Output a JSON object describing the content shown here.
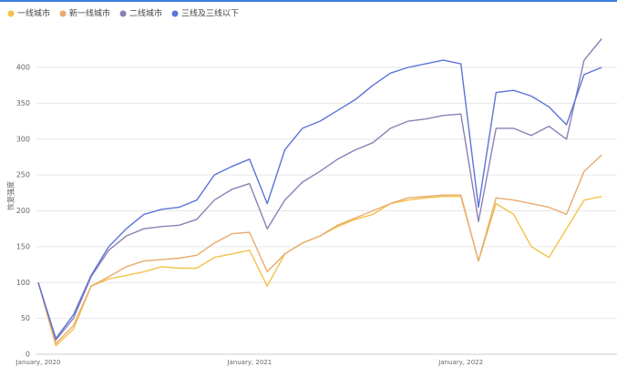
{
  "chart_data": {
    "type": "line",
    "ylabel": "恢复强度",
    "categories": [
      "January, 2020",
      null,
      null,
      null,
      null,
      null,
      null,
      null,
      null,
      null,
      null,
      null,
      "January, 2021",
      null,
      null,
      null,
      null,
      null,
      null,
      null,
      null,
      null,
      null,
      null,
      "January, 2022",
      null,
      null,
      null,
      null,
      null,
      null,
      null,
      null
    ],
    "series": [
      {
        "name": "一线城市",
        "color": "#f3c249",
        "values": [
          100,
          12,
          35,
          95,
          105,
          110,
          115,
          122,
          120,
          120,
          135,
          140,
          145,
          95,
          140,
          155,
          165,
          178,
          188,
          195,
          210,
          215,
          218,
          220,
          220,
          130,
          210,
          195,
          150,
          135,
          175,
          215,
          220
        ]
      },
      {
        "name": "新一线城市",
        "color": "#e9aa6e",
        "values": [
          100,
          15,
          40,
          95,
          108,
          122,
          130,
          132,
          134,
          138,
          155,
          168,
          170,
          115,
          140,
          155,
          165,
          180,
          190,
          200,
          210,
          218,
          220,
          222,
          222,
          130,
          218,
          215,
          210,
          205,
          195,
          255,
          278
        ]
      },
      {
        "name": "二线城市",
        "color": "#8b80b6",
        "values": [
          100,
          20,
          50,
          108,
          145,
          165,
          175,
          178,
          180,
          188,
          215,
          230,
          238,
          175,
          215,
          240,
          255,
          272,
          285,
          295,
          315,
          325,
          328,
          333,
          335,
          185,
          315,
          315,
          305,
          318,
          300,
          410,
          440
        ]
      },
      {
        "name": "三线及三线以下",
        "color": "#5c74d8",
        "values": [
          100,
          22,
          55,
          110,
          150,
          175,
          195,
          202,
          205,
          215,
          250,
          262,
          272,
          210,
          285,
          315,
          325,
          340,
          355,
          375,
          392,
          400,
          405,
          410,
          405,
          205,
          365,
          368,
          360,
          345,
          320,
          390,
          400
        ]
      }
    ],
    "ylim": [
      0,
      450
    ],
    "yticks": [
      0,
      50,
      100,
      150,
      200,
      250,
      300,
      350,
      400
    ],
    "grid": true,
    "legend": "top-left"
  }
}
